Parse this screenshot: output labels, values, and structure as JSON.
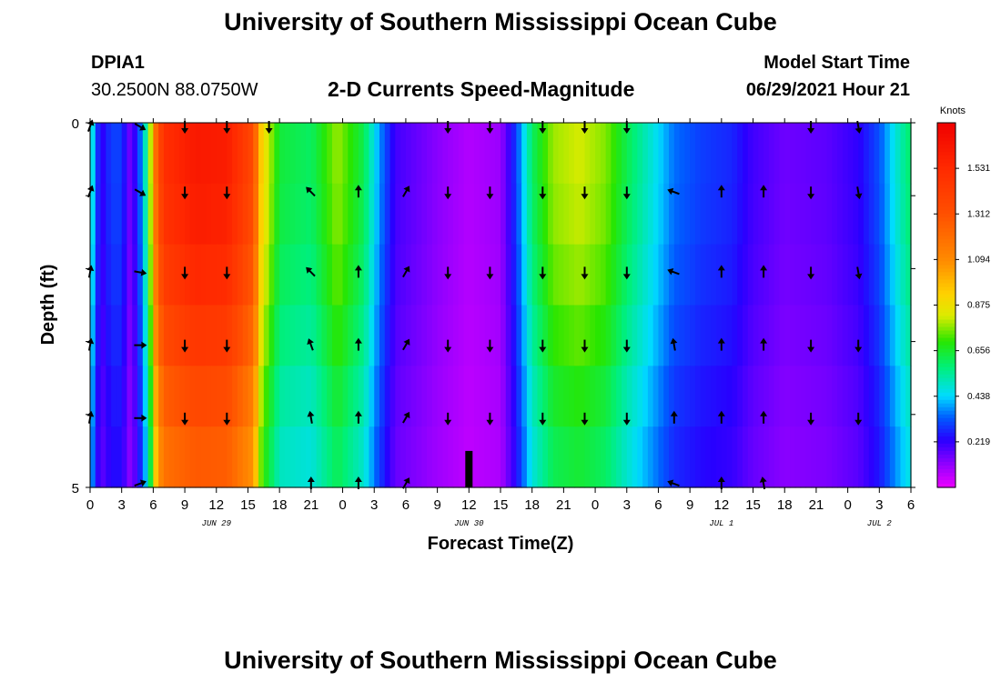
{
  "page": {
    "title": "University of Southern Mississippi Ocean Cube",
    "footer_title": "University of Southern Mississippi Ocean Cube",
    "station": "DPIA1",
    "location": "30.2500N  88.0750W",
    "subtitle": "2-D Currents Speed-Magnitude",
    "model_start_label": "Model Start Time",
    "model_start_value": "06/29/2021 Hour 21"
  },
  "chart_data": {
    "type": "heatmap",
    "title": "2-D Currents Speed-Magnitude",
    "xlabel": "Forecast Time(Z)",
    "ylabel": "Depth (ft)",
    "xlim": [
      0,
      78
    ],
    "ylim": [
      0,
      5
    ],
    "x_ticks": [
      {
        "x": 0,
        "label": "0"
      },
      {
        "x": 3,
        "label": "3"
      },
      {
        "x": 6,
        "label": "6"
      },
      {
        "x": 9,
        "label": "9"
      },
      {
        "x": 12,
        "label": "12"
      },
      {
        "x": 15,
        "label": "15"
      },
      {
        "x": 18,
        "label": "18"
      },
      {
        "x": 21,
        "label": "21"
      },
      {
        "x": 24,
        "label": "0"
      },
      {
        "x": 27,
        "label": "3"
      },
      {
        "x": 30,
        "label": "6"
      },
      {
        "x": 33,
        "label": "9"
      },
      {
        "x": 36,
        "label": "12"
      },
      {
        "x": 39,
        "label": "15"
      },
      {
        "x": 42,
        "label": "18"
      },
      {
        "x": 45,
        "label": "21"
      },
      {
        "x": 48,
        "label": "0"
      },
      {
        "x": 51,
        "label": "3"
      },
      {
        "x": 54,
        "label": "6"
      },
      {
        "x": 57,
        "label": "9"
      },
      {
        "x": 60,
        "label": "12"
      },
      {
        "x": 63,
        "label": "15"
      },
      {
        "x": 66,
        "label": "18"
      },
      {
        "x": 69,
        "label": "21"
      },
      {
        "x": 72,
        "label": "0"
      },
      {
        "x": 75,
        "label": "3"
      },
      {
        "x": 78,
        "label": "6"
      }
    ],
    "date_labels": [
      {
        "x": 12,
        "label": "JUN 29"
      },
      {
        "x": 36,
        "label": "JUN 30"
      },
      {
        "x": 60,
        "label": "JUL 1"
      },
      {
        "x": 75,
        "label": "JUL 2"
      }
    ],
    "y_ticks": [
      {
        "y": 0,
        "label": "0"
      },
      {
        "y": 5,
        "label": "5"
      }
    ],
    "colorbar": {
      "label": "Knots",
      "min": 0,
      "max": 1.75,
      "ticks": [
        "0.219",
        "0.438",
        "0.656",
        "0.875",
        "1.094",
        "1.312",
        "1.531"
      ]
    },
    "depth_profile": [
      1.0,
      0.985,
      0.95,
      0.9,
      0.84,
      0.79
    ],
    "surface_speed_knots": [
      {
        "x": 0,
        "v": 0.55
      },
      {
        "x": 0.5,
        "v": 0.35
      },
      {
        "x": 1,
        "v": 0.2
      },
      {
        "x": 2,
        "v": 0.3
      },
      {
        "x": 3,
        "v": 0.3
      },
      {
        "x": 3.7,
        "v": 0.15
      },
      {
        "x": 4.5,
        "v": 0.25
      },
      {
        "x": 5.5,
        "v": 0.6
      },
      {
        "x": 6.3,
        "v": 1.25
      },
      {
        "x": 7,
        "v": 1.5
      },
      {
        "x": 10,
        "v": 1.62
      },
      {
        "x": 13,
        "v": 1.6
      },
      {
        "x": 15.5,
        "v": 1.35
      },
      {
        "x": 16.3,
        "v": 0.92
      },
      {
        "x": 18,
        "v": 0.64
      },
      {
        "x": 21,
        "v": 0.6
      },
      {
        "x": 23.5,
        "v": 0.78
      },
      {
        "x": 26,
        "v": 0.62
      },
      {
        "x": 27.5,
        "v": 0.38
      },
      {
        "x": 29,
        "v": 0.2
      },
      {
        "x": 33,
        "v": 0.12
      },
      {
        "x": 36,
        "v": 0.07
      },
      {
        "x": 39,
        "v": 0.1
      },
      {
        "x": 40.5,
        "v": 0.3
      },
      {
        "x": 42,
        "v": 0.6
      },
      {
        "x": 44,
        "v": 0.78
      },
      {
        "x": 46.5,
        "v": 0.82
      },
      {
        "x": 49,
        "v": 0.76
      },
      {
        "x": 51,
        "v": 0.62
      },
      {
        "x": 53,
        "v": 0.5
      },
      {
        "x": 55.5,
        "v": 0.35
      },
      {
        "x": 58,
        "v": 0.3
      },
      {
        "x": 61,
        "v": 0.27
      },
      {
        "x": 63,
        "v": 0.2
      },
      {
        "x": 66,
        "v": 0.15
      },
      {
        "x": 70,
        "v": 0.17
      },
      {
        "x": 73,
        "v": 0.22
      },
      {
        "x": 75,
        "v": 0.32
      },
      {
        "x": 77,
        "v": 0.52
      },
      {
        "x": 78,
        "v": 0.6
      }
    ],
    "arrow_depths": [
      0.05,
      0.95,
      2.05,
      3.05,
      4.05,
      4.95
    ],
    "arrow_columns": [
      {
        "x": 0,
        "dirs": [
          20,
          20,
          10,
          10,
          10,
          null
        ]
      },
      {
        "x": 4.7,
        "dirs": [
          120,
          120,
          100,
          90,
          90,
          70
        ]
      },
      {
        "x": 9,
        "dirs": [
          180,
          180,
          180,
          180,
          180,
          null
        ]
      },
      {
        "x": 13,
        "dirs": [
          180,
          180,
          180,
          180,
          180,
          null
        ]
      },
      {
        "x": 17,
        "dirs": [
          180,
          null,
          null,
          null,
          null,
          null
        ]
      },
      {
        "x": 21,
        "dirs": [
          null,
          315,
          315,
          340,
          350,
          0
        ]
      },
      {
        "x": 25.5,
        "dirs": [
          null,
          0,
          0,
          0,
          0,
          0
        ]
      },
      {
        "x": 30,
        "dirs": [
          null,
          30,
          30,
          30,
          30,
          30
        ]
      },
      {
        "x": 34,
        "dirs": [
          180,
          180,
          180,
          180,
          180,
          null
        ]
      },
      {
        "x": 38,
        "dirs": [
          180,
          180,
          180,
          180,
          180,
          null
        ]
      },
      {
        "x": 43,
        "dirs": [
          180,
          180,
          180,
          180,
          180,
          null
        ]
      },
      {
        "x": 47,
        "dirs": [
          180,
          180,
          180,
          180,
          180,
          null
        ]
      },
      {
        "x": 51,
        "dirs": [
          180,
          180,
          180,
          180,
          180,
          null
        ]
      },
      {
        "x": 55.5,
        "dirs": [
          null,
          290,
          290,
          350,
          0,
          290
        ]
      },
      {
        "x": 60,
        "dirs": [
          null,
          0,
          0,
          0,
          0,
          0
        ]
      },
      {
        "x": 64,
        "dirs": [
          null,
          0,
          0,
          0,
          0,
          350
        ]
      },
      {
        "x": 68.5,
        "dirs": [
          180,
          180,
          180,
          180,
          180,
          null
        ]
      },
      {
        "x": 73,
        "dirs": [
          170,
          170,
          170,
          180,
          180,
          null
        ]
      },
      {
        "x": 77.5,
        "dirs": [
          null,
          null,
          null,
          null,
          null,
          null
        ]
      }
    ]
  }
}
